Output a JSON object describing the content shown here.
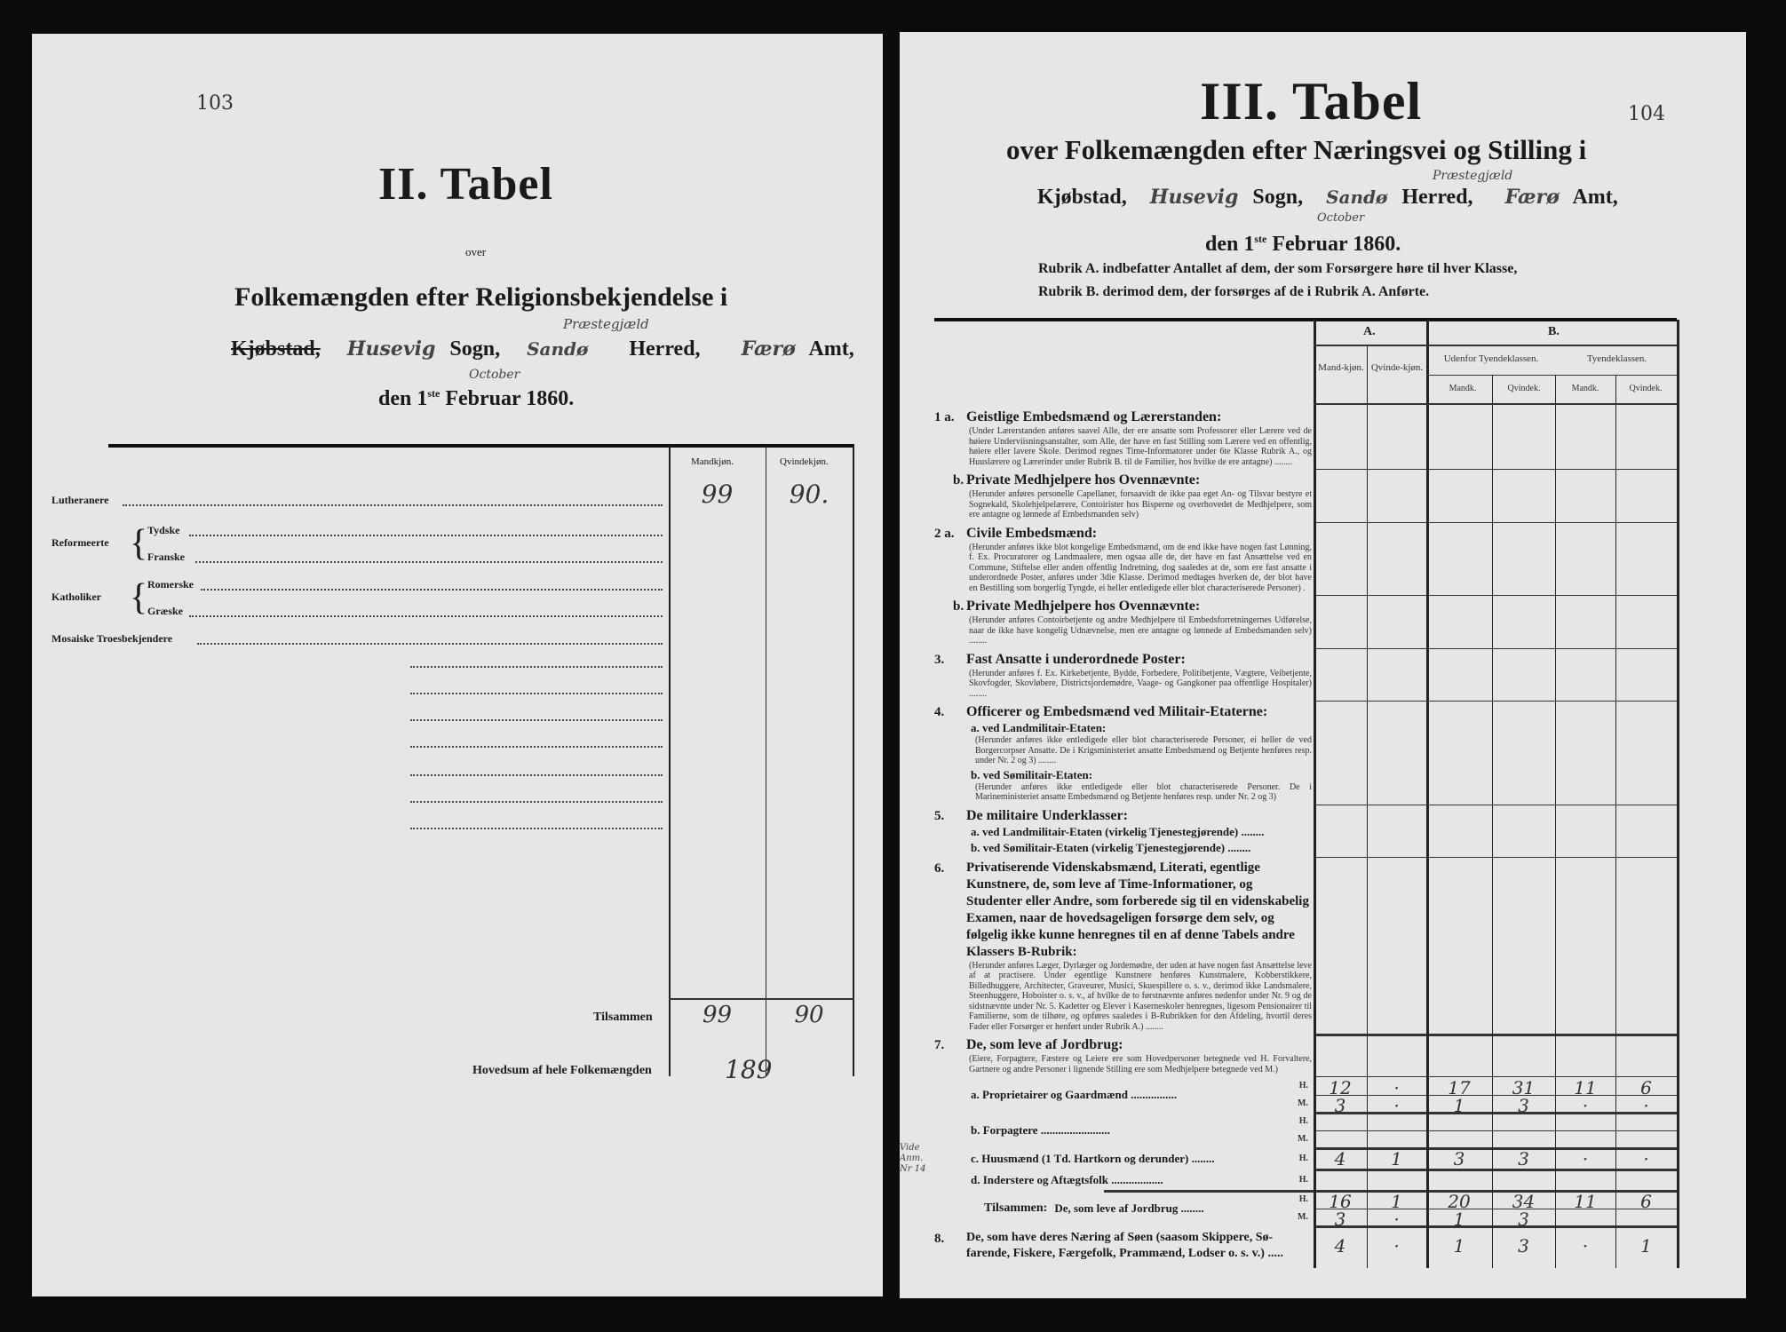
{
  "left_page": {
    "page_number": "103",
    "title": "II. Tabel",
    "over": "over",
    "subtitle": "Folkemængden efter Religionsbekjendelse i",
    "place_line": {
      "kjobstad": "Kjøbstad,",
      "sogn_hand": "Husevig",
      "sogn": "Sogn,",
      "herred_hand": "Sandø",
      "herred_note": "Præstegjæld",
      "herred": "Herred,",
      "amt_hand": "Færø",
      "amt": "Amt,"
    },
    "date_line": {
      "den": "den 1",
      "ste": "ste",
      "month": "Februar",
      "month_hand": "October",
      "year": "1860."
    },
    "columns": [
      "Mandkjøn.",
      "Qvindekjøn."
    ],
    "rows": [
      {
        "label": "Lutheranere",
        "values": [
          "99",
          "90."
        ]
      },
      {
        "group": "Reformeerte",
        "label": "Tydske",
        "values": [
          "",
          ""
        ]
      },
      {
        "label": "Franske",
        "values": [
          "",
          ""
        ]
      },
      {
        "group": "Katholiker",
        "label": "Romerske",
        "values": [
          "",
          ""
        ]
      },
      {
        "label": "Græske",
        "values": [
          "",
          ""
        ]
      },
      {
        "label": "Mosaiske Troesbekjendere",
        "values": [
          "",
          ""
        ]
      }
    ],
    "total": {
      "label": "Tilsammen",
      "values": [
        "99",
        "90"
      ]
    },
    "grand_total": {
      "label": "Hovedsum af hele Folkemængden",
      "value": "189"
    }
  },
  "right_page": {
    "page_number": "104",
    "title": "III. Tabel",
    "subtitle": "over Folkemængden efter Næringsvei og Stilling i",
    "place_line": {
      "kjobstad": "Kjøbstad,",
      "sogn_hand": "Husevig",
      "sogn": "Sogn,",
      "herred_hand": "Sandø",
      "herred_note": "Præstegjæld",
      "herred": "Herred,",
      "amt_hand": "Færø",
      "amt": "Amt,"
    },
    "date_line": {
      "den": "den 1",
      "ste": "ste",
      "month": "Februar",
      "month_hand": "October",
      "year": "1860."
    },
    "rubrik_a": "Rubrik A. indbefatter Antallet af dem, der som Forsørgere høre til hver Klasse,",
    "rubrik_b": "Rubrik B. derimod dem, der forsørges af de i Rubrik A. Anførte.",
    "header": {
      "a": "A.",
      "b": "B.",
      "mandkjon": "Mand-kjøn.",
      "qvindekjon": "Qvinde-kjøn.",
      "udenfor": "Udenfor Tyendeklassen.",
      "tyende": "Tyendeklassen.",
      "mandk": "Mandk.",
      "qvindek": "Qvindek."
    },
    "sections": [
      {
        "no": "1 a.",
        "title": "Geistlige Embedsmænd og Lærerstanden:",
        "note": "(Under Lærerstanden anføres saavel Alle, der ere ansatte som Professorer eller Lærere ved de høiere Underviisningsanstalter, som Alle, der have en fast Stilling som Lærere ved en offentlig, høiere eller lavere Skole. Derimod regnes Time-Informatorer under 6te Klasse Rubrik A., og Huuslærere og Lærerinder under Rubrik B. til de Familier, hos hvilke de ere antagne) ........"
      },
      {
        "no": "b.",
        "title": "Private Medhjelpere hos Ovennævnte:",
        "note": "(Herunder anføres personelle Capellaner, forsaavidt de ikke paa eget An- og Tilsvar bestyre et Sognekald, Skolehjelpelærere, Contoirister hos Bisperne og overhovedet de Medhjelpere, som ere antagne og lønnede af Embedsmanden selv)"
      },
      {
        "no": "2 a.",
        "title": "Civile Embedsmænd:",
        "note": "(Herunder anføres ikke blot kongelige Embedsmænd, om de end ikke have nogen fast Lønning, f. Ex. Procuratorer og Landmaalere, men ogsaa alle de, der have en fast Ansættelse ved en Commune, Stiftelse eller anden offentlig Indretning, dog saaledes at de, som ere fast ansatte i underordnede Poster, anføres under 3die Klasse. Derimod medtages hverken de, der blot have en Bestilling som borgerlig Tyngde, ei heller entledigede eller blot characteriserede Personer) ."
      },
      {
        "no": "b.",
        "title": "Private Medhjelpere hos Ovennævnte:",
        "note": "(Herunder anføres Contoirbetjente og andre Medhjelpere til Embedsforretningernes Udførelse, naar de ikke have kongelig Udnævnelse, men ere antagne og lønnede af Embedsmanden selv) ........"
      },
      {
        "no": "3.",
        "title": "Fast Ansatte i underordnede Poster:",
        "note": "(Herunder anføres f. Ex. Kirkebetjente, Bydde, Forbedere, Politibetjente, Vægtere, Veibetjente, Skovfogder, Skovløbere, Districtsjordemødre, Vaage- og Gangkoner paa offentlige Hospitaler) ........"
      },
      {
        "no": "4.",
        "title": "Officerer og Embedsmænd ved Militair-Etaterne:",
        "sub_a": "a.  ved Landmilitair-Etaten:",
        "note_a": "(Herunder anføres ikke entledigede eller blot characteriserede Personer, ei heller de ved Borgercorpser Ansatte. De i Krigsministeriet ansatte Embedsmænd og Betjente henføres resp. under Nr. 2 og 3) ........",
        "sub_b": "b.  ved Sømilitair-Etaten:",
        "note_b": "(Herunder anføres ikke entledigede eller blot characteriserede Personer. De i Marineministeriet ansatte Embedsmænd og Betjente henføres resp. under Nr. 2 og 3)"
      },
      {
        "no": "5.",
        "title": "De militaire Underklasser:",
        "sub_a": "a.  ved Landmilitair-Etaten (virkelig Tjenestegjørende) ........",
        "sub_b": "b.  ved Sømilitair-Etaten (virkelig Tjenestegjørende) ........"
      },
      {
        "no": "6.",
        "title": "Privatiserende Videnskabsmænd, Literati, egentlige Kunstnere, de, som leve af Time-Informationer, og Studenter eller Andre, som forberede sig til en videnskabelig Examen, naar de hovedsageligen forsørge dem selv, og følgelig ikke kunne henregnes til en af denne Tabels andre Klassers B-Rubrik:",
        "note": "(Herunder anføres Læger, Dyrlæger og Jordemødre, der uden at have nogen fast Ansættelse leve af at practisere. Under egentlige Kunstnere henføres Kunstmalere, Kobberstikkere, Billedhuggere, Architecter, Graveurer, Musici, Skuespillere o. s. v., derimod ikke Landsmalere, Steenhuggere, Hoboister o. s. v., af hvilke de to førstnævnte anføres nedenfor under Nr. 9 og de sidstnævnte under Nr. 5. Kadetter og Elever i Kaserneskoler henregnes, ligesom Pensionairer til Familierne, som de tilhøre, og opføres saaledes i B-Rubrikken for den Afdeling, hvortil deres Fader eller Forsørger er henført under Rubrik A.) ........"
      },
      {
        "no": "7.",
        "title": "De, som leve af Jordbrug:",
        "note": "(Eiere, Forpagtere, Fæstere og Leiere ere som Hovedpersoner betegnede ved H. Forvaltere, Gartnere og andre Personer i lignende Stilling ere som Medhjelpere betegnede ved M.)"
      }
    ],
    "agri_rows": [
      {
        "label": "a.  Proprietairer og Gaardmænd ................",
        "marks": [
          "H.",
          "M."
        ],
        "H": [
          "12",
          "·",
          "17",
          "31",
          "11",
          "6"
        ],
        "M": [
          "3",
          "·",
          "1",
          "3",
          "·",
          "·"
        ]
      },
      {
        "label": "b.  Forpagtere ........................",
        "marks": [
          "H.",
          "M."
        ],
        "H": [
          "",
          "",
          "",
          "",
          "",
          ""
        ],
        "M": [
          "",
          "",
          "",
          "",
          "",
          ""
        ]
      },
      {
        "label": "c.  Huusmænd (1 Td. Hartkorn og derunder) ........",
        "marks": [
          "H."
        ],
        "H": [
          "4",
          "1",
          "3",
          "3",
          "·",
          "·"
        ]
      },
      {
        "label": "d.  Inderstere og Aftægtsfolk ..................",
        "marks": [
          "H."
        ],
        "H": [
          "",
          "",
          "",
          "",
          "",
          ""
        ]
      }
    ],
    "margin_note": "Vide Anm. Nr 14",
    "agri_total": {
      "label": "Tilsammen:",
      "text": "De, som leve af Jordbrug ........",
      "marks": [
        "H.",
        "M."
      ],
      "H": [
        "16",
        "1",
        "20",
        "34",
        "11",
        "6"
      ],
      "M": [
        "3",
        "·",
        "1",
        "3",
        "",
        ""
      ]
    },
    "row8": {
      "no": "8.",
      "line1": "De, som have deres Næring af Søen (saasom Skippere, Sø-",
      "line2": "farende, Fiskere, Færgefolk, Prammænd, Lodser o. s. v.) .....",
      "values": [
        "4",
        "·",
        "1",
        "3",
        "·",
        "1"
      ]
    }
  }
}
